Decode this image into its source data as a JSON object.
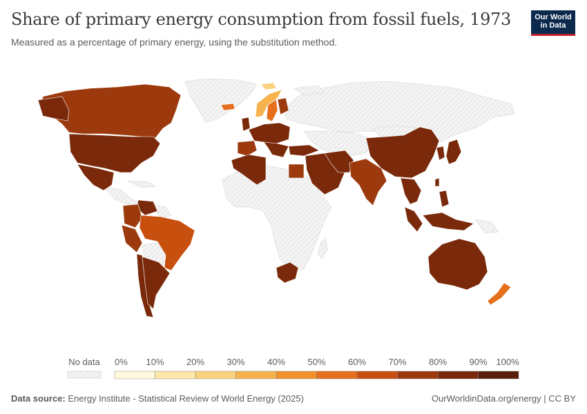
{
  "title": "Share of primary energy consumption from fossil fuels, 1973",
  "subtitle": "Measured as a percentage of primary energy, using the substitution method.",
  "logo": {
    "line1": "Our World",
    "line2": "in Data"
  },
  "legend": {
    "no_data_label": "No data",
    "ticks": [
      "0%",
      "10%",
      "20%",
      "30%",
      "40%",
      "50%",
      "60%",
      "70%",
      "80%",
      "90%",
      "100%"
    ],
    "bin_colors": [
      "#fff8dd",
      "#fde7a8",
      "#fbd27f",
      "#f6b24c",
      "#f2912b",
      "#e56f1d",
      "#c8500f",
      "#9c3a0e",
      "#7a2a0b",
      "#5a1e08"
    ]
  },
  "colors": {
    "no_data": "#e8e8e8",
    "accent_logo": "#0c2a4d",
    "accent_logo_bar": "#c0202b"
  },
  "footer": {
    "source_label": "Data source:",
    "source_text": "Energy Institute - Statistical Review of World Energy (2025)",
    "right_text": "OurWorldinData.org/energy | CC BY"
  }
}
